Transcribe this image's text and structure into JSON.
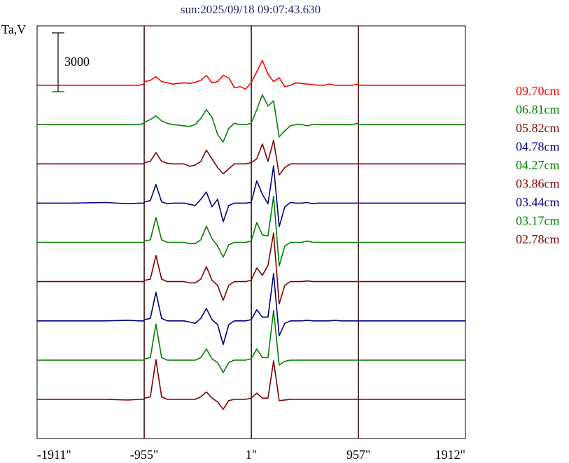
{
  "chart_data": {
    "type": "line",
    "title": "sun:2025/09/18 09:07:43.630",
    "ylabel": "Ta,V",
    "scale_bar_label": "3000",
    "scale_bar_value": 3000,
    "xlim": [
      -1911,
      1912
    ],
    "x_ticks": [
      -1911,
      -955,
      1,
      957,
      1912
    ],
    "x_tick_labels": [
      "-1911\"",
      "-955\"",
      "1\"",
      "957\"",
      "1912\""
    ],
    "vertical_markers": [
      -955,
      1,
      957
    ],
    "grid": false,
    "legend_position": "right",
    "baseline_spacing": 3000,
    "x": [
      -1911,
      -1600,
      -1300,
      -1100,
      -1000,
      -960,
      -950,
      -900,
      -850,
      -800,
      -750,
      -700,
      -650,
      -600,
      -550,
      -500,
      -450,
      -400,
      -350,
      -300,
      -250,
      -200,
      -150,
      -100,
      -50,
      0,
      50,
      100,
      150,
      200,
      250,
      300,
      350,
      400,
      450,
      500,
      550,
      600,
      650,
      700,
      750,
      800,
      850,
      900,
      950,
      960,
      1000,
      1200,
      1400,
      1600,
      1912
    ],
    "series": [
      {
        "name": "09.70cm",
        "color": "#ff0000",
        "offset": 8,
        "values": [
          0,
          0,
          0,
          0,
          0,
          100,
          300,
          400,
          700,
          300,
          200,
          100,
          150,
          200,
          150,
          250,
          400,
          800,
          200,
          300,
          800,
          600,
          -200,
          -100,
          -300,
          200,
          1100,
          2000,
          900,
          300,
          600,
          -100,
          0,
          200,
          150,
          100,
          50,
          0,
          0,
          100,
          0,
          0,
          0,
          0,
          100,
          0,
          0,
          0,
          0,
          0,
          0
        ]
      },
      {
        "name": "06.81cm",
        "color": "#008000",
        "offset": 7,
        "values": [
          0,
          0,
          0,
          0,
          0,
          100,
          200,
          400,
          700,
          300,
          100,
          0,
          -50,
          -100,
          -150,
          0,
          500,
          1200,
          600,
          -800,
          -1400,
          -300,
          100,
          0,
          0,
          100,
          1200,
          2400,
          1500,
          1900,
          -1000,
          -500,
          -100,
          0,
          0,
          -100,
          0,
          0,
          0,
          0,
          0,
          0,
          0,
          0,
          100,
          0,
          0,
          0,
          0,
          0,
          0
        ]
      },
      {
        "name": "05.82cm",
        "color": "#800000",
        "offset": 6,
        "values": [
          0,
          0,
          0,
          0,
          0,
          0,
          100,
          200,
          900,
          200,
          50,
          0,
          0,
          0,
          -200,
          -100,
          200,
          1100,
          400,
          -300,
          -800,
          -400,
          0,
          0,
          0,
          100,
          400,
          1600,
          200,
          1900,
          -900,
          -300,
          0,
          0,
          0,
          0,
          0,
          0,
          0,
          0,
          0,
          0,
          0,
          0,
          0,
          0,
          0,
          0,
          0,
          0,
          0
        ]
      },
      {
        "name": "04.78cm",
        "color": "#000080",
        "offset": 5,
        "values": [
          0,
          0,
          50,
          -50,
          0,
          0,
          100,
          200,
          1500,
          100,
          -50,
          0,
          0,
          0,
          -100,
          -200,
          300,
          900,
          -300,
          300,
          -1500,
          -200,
          0,
          0,
          0,
          50,
          1800,
          700,
          -50,
          3000,
          -1900,
          -300,
          50,
          0,
          0,
          50,
          -50,
          0,
          0,
          0,
          0,
          0,
          0,
          0,
          0,
          0,
          0,
          0,
          0,
          0,
          0
        ]
      },
      {
        "name": "04.27cm",
        "color": "#008000",
        "offset": 4,
        "values": [
          0,
          0,
          0,
          0,
          0,
          0,
          100,
          200,
          2000,
          200,
          0,
          0,
          0,
          0,
          -100,
          -100,
          200,
          1300,
          300,
          -300,
          -1200,
          -200,
          0,
          0,
          0,
          100,
          1600,
          600,
          500,
          3700,
          -1900,
          -300,
          0,
          0,
          0,
          100,
          0,
          0,
          0,
          0,
          0,
          0,
          0,
          0,
          0,
          0,
          0,
          0,
          0,
          0,
          0
        ]
      },
      {
        "name": "03.86cm",
        "color": "#800000",
        "offset": 3,
        "values": [
          0,
          0,
          0,
          0,
          0,
          0,
          100,
          200,
          2100,
          200,
          0,
          0,
          0,
          0,
          -100,
          -100,
          200,
          1200,
          100,
          -300,
          -1500,
          -300,
          0,
          0,
          0,
          100,
          1100,
          500,
          1300,
          3900,
          -1800,
          -300,
          0,
          0,
          0,
          50,
          0,
          0,
          0,
          0,
          0,
          0,
          0,
          0,
          0,
          0,
          0,
          0,
          0,
          0,
          0
        ]
      },
      {
        "name": "03.44cm",
        "color": "#000080",
        "offset": 2,
        "values": [
          0,
          0,
          0,
          50,
          0,
          0,
          100,
          200,
          2300,
          200,
          0,
          0,
          0,
          0,
          -100,
          -200,
          200,
          1000,
          100,
          -300,
          -1900,
          -300,
          0,
          0,
          0,
          100,
          900,
          300,
          300,
          3800,
          -1200,
          -200,
          0,
          0,
          0,
          50,
          0,
          0,
          0,
          0,
          50,
          0,
          0,
          0,
          0,
          0,
          0,
          0,
          0,
          0,
          0
        ]
      },
      {
        "name": "03.17cm",
        "color": "#008000",
        "offset": 1,
        "values": [
          0,
          0,
          0,
          0,
          0,
          0,
          100,
          200,
          2900,
          200,
          0,
          0,
          0,
          0,
          0,
          0,
          200,
          900,
          100,
          -200,
          -1000,
          -200,
          0,
          0,
          0,
          100,
          900,
          200,
          200,
          4000,
          -400,
          -100,
          0,
          0,
          0,
          0,
          0,
          0,
          0,
          0,
          0,
          0,
          0,
          0,
          0,
          0,
          0,
          0,
          0,
          0,
          0
        ]
      },
      {
        "name": "02.78cm",
        "color": "#800000",
        "offset": 0,
        "values": [
          0,
          0,
          0,
          -50,
          0,
          0,
          100,
          200,
          3200,
          200,
          0,
          0,
          0,
          0,
          0,
          0,
          200,
          600,
          100,
          -200,
          -800,
          -100,
          0,
          0,
          0,
          100,
          500,
          100,
          100,
          3100,
          -100,
          -50,
          0,
          0,
          0,
          0,
          0,
          0,
          0,
          0,
          0,
          0,
          0,
          0,
          0,
          0,
          0,
          0,
          0,
          0,
          0
        ]
      }
    ]
  }
}
